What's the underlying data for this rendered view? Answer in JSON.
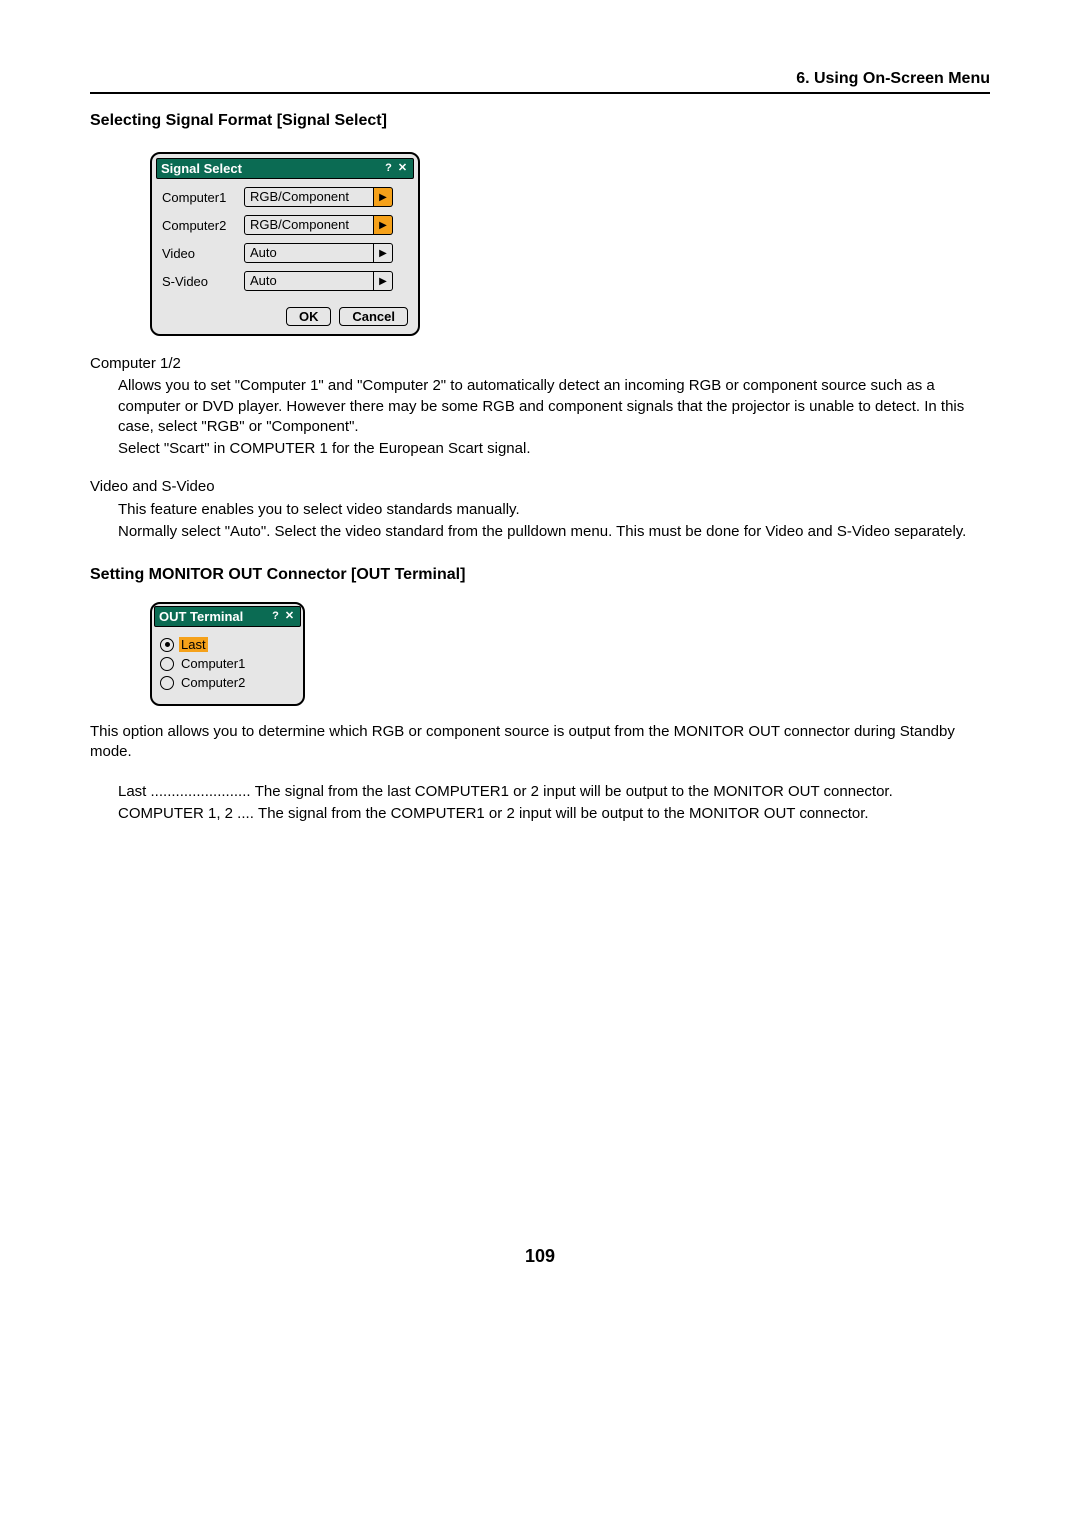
{
  "chapter_title": "6. Using On-Screen Menu",
  "section1_title": "Selecting Signal Format [Signal Select]",
  "signal_dialog": {
    "title": "Signal Select",
    "rows": [
      {
        "label": "Computer1",
        "value": "RGB/Component",
        "orange": true
      },
      {
        "label": "Computer2",
        "value": "RGB/Component",
        "orange": true
      },
      {
        "label": "Video",
        "value": "Auto",
        "orange": false
      },
      {
        "label": "S-Video",
        "value": "Auto",
        "orange": false
      }
    ],
    "ok": "OK",
    "cancel": "Cancel"
  },
  "computer_heading": "Computer 1/2",
  "computer_para1": "Allows you to set \"Computer 1\" and \"Computer 2\" to automatically detect an incoming RGB or component source such as a computer or DVD player. However there may be some RGB and component signals that the projector is unable to detect. In this case, select \"RGB\" or \"Component\".",
  "computer_para2": "Select \"Scart\" in COMPUTER 1 for the European Scart signal.",
  "video_heading": "Video and S-Video",
  "video_para1": "This feature enables you to select video standards manually.",
  "video_para2": "Normally select \"Auto\". Select the video standard from the pulldown menu. This must be done for Video and S-Video separately.",
  "section2_title": "Setting MONITOR OUT Connector [OUT Terminal]",
  "out_dialog": {
    "title": "OUT Terminal",
    "options": [
      {
        "label": "Last",
        "selected": true
      },
      {
        "label": "Computer1",
        "selected": false
      },
      {
        "label": "Computer2",
        "selected": false
      }
    ]
  },
  "out_desc": "This option allows you to determine which RGB or component source is output from the MONITOR OUT connector during Standby mode.",
  "defs": [
    {
      "term": "Last ........................ ",
      "desc": "The signal from the last COMPUTER1 or 2 input will be output to the MONITOR OUT connector."
    },
    {
      "term": "COMPUTER 1, 2 .... ",
      "desc": "The signal from the COMPUTER1 or 2 input will be output to the MONITOR OUT connector."
    }
  ],
  "page_number": "109"
}
